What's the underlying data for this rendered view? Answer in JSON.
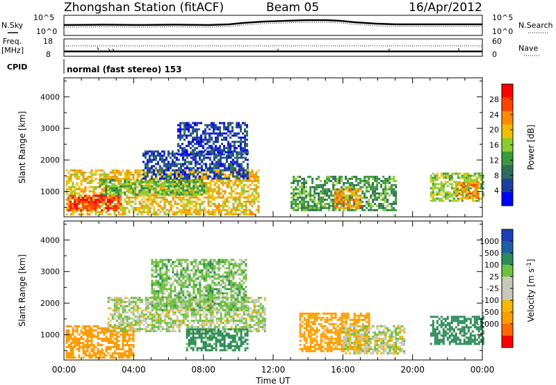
{
  "header": {
    "station": "Zhongshan Station (fitACF)",
    "beam": "Beam 05",
    "date": "16/Apr/2012"
  },
  "noise_panel": {
    "left_label": "N.Sky",
    "right_label": "N.Search",
    "left_ticks": [
      "10^5",
      "10^0"
    ],
    "right_ticks": [
      "10^5",
      "10^0"
    ]
  },
  "freq_panel": {
    "left_label_line1": "Freq.",
    "left_label_line2": "[MHz]",
    "right_label": "Nave",
    "left_ticks": [
      "18",
      "8"
    ],
    "right_ticks": [
      "60",
      "0"
    ]
  },
  "cpid": {
    "label": "CPID",
    "mode": "normal (fast stereo) 153"
  },
  "colors": {
    "power": [
      "#0000ff",
      "#1f3fa0",
      "#2e6e5a",
      "#3a9a3a",
      "#8acd30",
      "#f0c000",
      "#ff8c00",
      "#ff4500",
      "#ff0000"
    ],
    "velocity": [
      "#ff0000",
      "#ff6a00",
      "#ff9c00",
      "#f5b800",
      "#c8c8b8",
      "#c8c8b8",
      "#6ec040",
      "#2e8c5a",
      "#1f5fa8",
      "#1e3fb8"
    ]
  },
  "chart_data": [
    {
      "type": "heatmap",
      "name": "power",
      "ylabel": "Slant Range [km]",
      "xlim_hours": [
        0,
        24
      ],
      "ylim": [
        200,
        4600
      ],
      "y_ticks": [
        "1000",
        "2000",
        "3000",
        "4000"
      ],
      "colorbar_label": "Power [dB]",
      "colorbar_ticks": [
        "4",
        "8",
        "12",
        "16",
        "20",
        "24",
        "28"
      ],
      "colorbar_range": [
        0,
        32
      ],
      "echo_regions": [
        {
          "t0": 0.1,
          "t1": 11.2,
          "r0": 300,
          "r1": 1700,
          "value": 20
        },
        {
          "t0": 0.2,
          "t1": 3.2,
          "r0": 400,
          "r1": 900,
          "value": 28
        },
        {
          "t0": 2.0,
          "t1": 8.0,
          "r0": 900,
          "r1": 1400,
          "value": 14
        },
        {
          "t0": 4.5,
          "t1": 10.5,
          "r0": 1400,
          "r1": 2300,
          "value": 6
        },
        {
          "t0": 6.5,
          "t1": 10.5,
          "r0": 2200,
          "r1": 3200,
          "value": 5
        },
        {
          "t0": 13.0,
          "t1": 19.0,
          "r0": 400,
          "r1": 1500,
          "value": 12
        },
        {
          "t0": 15.5,
          "t1": 17.0,
          "r0": 500,
          "r1": 1100,
          "value": 22
        },
        {
          "t0": 21.0,
          "t1": 24.0,
          "r0": 700,
          "r1": 1600,
          "value": 16
        },
        {
          "t0": 22.5,
          "t1": 23.8,
          "r0": 800,
          "r1": 1300,
          "value": 24
        }
      ]
    },
    {
      "type": "heatmap",
      "name": "velocity",
      "xlabel": "Time UT",
      "ylabel": "Slant Range [km]",
      "xlim_hours": [
        0,
        24
      ],
      "x_ticks": [
        "00:00",
        "04:00",
        "08:00",
        "12:00",
        "16:00",
        "20:00",
        "00:00"
      ],
      "ylim": [
        200,
        4600
      ],
      "y_ticks": [
        "1000",
        "2000",
        "3000",
        "4000"
      ],
      "colorbar_label": "Velocity [m s",
      "colorbar_unit_exp": "-1",
      "colorbar_unit_close": "]",
      "colorbar_ticks": [
        "1000",
        "500",
        "100",
        "25",
        "-25",
        "-100",
        "-500",
        "-1000"
      ],
      "echo_regions": [
        {
          "t0": 0.1,
          "t1": 4.0,
          "r0": 300,
          "r1": 1300,
          "value": -400
        },
        {
          "t0": 2.5,
          "t1": 11.5,
          "r0": 1100,
          "r1": 2200,
          "value": 20
        },
        {
          "t0": 5.0,
          "t1": 10.5,
          "r0": 1800,
          "r1": 3400,
          "value": 60
        },
        {
          "t0": 7.0,
          "t1": 10.5,
          "r0": 500,
          "r1": 1200,
          "value": 150
        },
        {
          "t0": 13.5,
          "t1": 17.5,
          "r0": 500,
          "r1": 1700,
          "value": -150
        },
        {
          "t0": 16.0,
          "t1": 19.5,
          "r0": 400,
          "r1": 1300,
          "value": 0
        },
        {
          "t0": 21.0,
          "t1": 24.0,
          "r0": 700,
          "r1": 1600,
          "value": 300
        }
      ]
    }
  ]
}
